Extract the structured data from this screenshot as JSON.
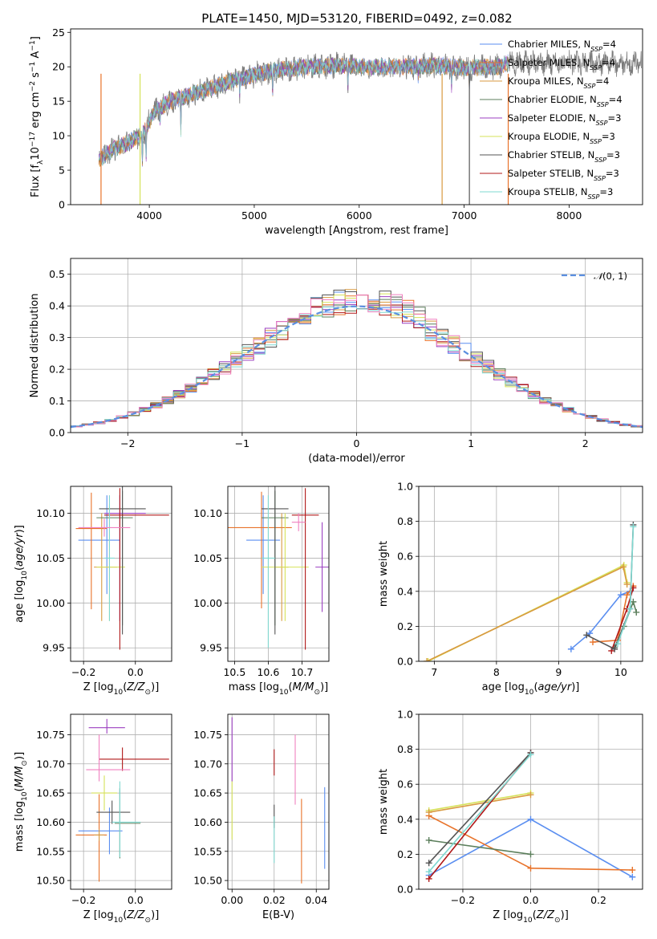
{
  "figure": {
    "title": "PLATE=1450, MJD=53120, FIBERID=0492, z=0.082"
  },
  "colors": {
    "Chabrier MILES": "#5a8ef0",
    "Salpeter MILES": "#e8732a",
    "Kroupa MILES": "#d89a40",
    "Chabrier ELODIE": "#5c7f5c",
    "Salpeter ELODIE": "#9b3fc0",
    "Kroupa ELODIE": "#d6e25a",
    "Chabrier STELIB": "#555555",
    "Salpeter STELIB": "#b01818",
    "Kroupa STELIB": "#7fd8d0",
    "extra_pink": "#f080c0",
    "grid": "#b0b0b0"
  },
  "chart_data": [
    {
      "id": "spectrum",
      "type": "line",
      "xlabel": "wavelength [Angstrom, rest frame]",
      "ylabel": "Flux [fλ10⁻¹⁷ erg cm⁻² s⁻¹ A⁻¹]",
      "xlim": [
        3250,
        8700
      ],
      "ylim": [
        0,
        25.5
      ],
      "xticks": [
        4000,
        5000,
        6000,
        7000,
        8000
      ],
      "yticks": [
        0,
        5,
        10,
        15,
        20,
        25
      ],
      "grid": false,
      "legend_position": "right",
      "legend": [
        "Chabrier MILES, N_SSP=4",
        "Salpeter MILES, N_SSP=4",
        "Kroupa MILES, N_SSP=4",
        "Chabrier ELODIE, N_SSP=4",
        "Salpeter ELODIE, N_SSP=3",
        "Kroupa ELODIE, N_SSP=3",
        "Chabrier STELIB, N_SSP=3",
        "Salpeter STELIB, N_SSP=3",
        "Kroupa STELIB, N_SSP=3"
      ],
      "continuum": [
        [
          3520,
          6.5
        ],
        [
          3650,
          8.0
        ],
        [
          3800,
          9.0
        ],
        [
          3950,
          10.5
        ],
        [
          4050,
          13.5
        ],
        [
          4200,
          15.0
        ],
        [
          4400,
          16.0
        ],
        [
          4600,
          17.0
        ],
        [
          4800,
          18.0
        ],
        [
          5000,
          18.8
        ],
        [
          5200,
          19.5
        ],
        [
          5500,
          20.0
        ],
        [
          5800,
          20.2
        ],
        [
          6100,
          20.0
        ],
        [
          6400,
          20.0
        ],
        [
          6700,
          20.2
        ],
        [
          7000,
          19.8
        ],
        [
          7300,
          20.0
        ],
        [
          7420,
          20.5
        ]
      ],
      "features": [
        [
          3934,
          4.0
        ],
        [
          3969,
          4.5
        ],
        [
          4102,
          2.0
        ],
        [
          4300,
          5.0
        ],
        [
          4861,
          2.0
        ],
        [
          5175,
          3.5
        ],
        [
          5893,
          3.0
        ],
        [
          6563,
          2.0
        ],
        [
          6880,
          2.5
        ],
        [
          7050,
          3.0
        ]
      ],
      "drops": [
        [
          3540,
          "Salpeter MILES"
        ],
        [
          3912,
          "Kroupa ELODIE"
        ],
        [
          6790,
          "Kroupa MILES"
        ],
        [
          7050,
          "Chabrier STELIB"
        ],
        [
          7420,
          "Salpeter MILES"
        ]
      ]
    },
    {
      "id": "residuals",
      "type": "line",
      "xlabel": "(data-model)/error",
      "ylabel": "Normed distribution",
      "xlim": [
        -2.5,
        2.5
      ],
      "ylim": [
        0,
        0.55
      ],
      "xticks": [
        -2,
        -1,
        0,
        1,
        2
      ],
      "yticks": [
        0.0,
        0.1,
        0.2,
        0.3,
        0.4,
        0.5
      ],
      "grid": true,
      "legend_position": "top-right",
      "legend": [
        "N(0, 1)"
      ]
    },
    {
      "id": "z_age",
      "type": "scatter",
      "xlabel": "Z [log10(Z/Z⊙)]",
      "ylabel": "age  [log10(age/yr)]",
      "xlim": [
        -0.25,
        0.14
      ],
      "ylim": [
        9.935,
        10.13
      ],
      "xticks": [
        -0.2,
        0.0
      ],
      "yticks": [
        9.95,
        10.0,
        10.05,
        10.1
      ],
      "grid": true,
      "points": [
        {
          "series": "Chabrier MILES",
          "x": -0.11,
          "y": 10.07,
          "xerr": [
            0.11,
            0.05
          ],
          "yerr": [
            0.06,
            0.05
          ]
        },
        {
          "series": "Salpeter MILES",
          "x": -0.17,
          "y": 10.083,
          "xerr": [
            0.06,
            0.06
          ],
          "yerr": [
            0.09,
            0.04
          ]
        },
        {
          "series": "Kroupa MILES",
          "x": -0.13,
          "y": 10.04,
          "xerr": [
            0.03,
            0.06
          ],
          "yerr": [
            0.06,
            0.06
          ]
        },
        {
          "series": "Chabrier ELODIE",
          "x": -0.05,
          "y": 10.095,
          "xerr": [
            0.1,
            0.04
          ],
          "yerr": [
            0.12,
            0.03
          ]
        },
        {
          "series": "Salpeter ELODIE",
          "x": -0.06,
          "y": 10.1,
          "xerr": [
            0.06,
            0.1
          ],
          "yerr": [
            0.12,
            0.02
          ]
        },
        {
          "series": "Kroupa ELODIE",
          "x": -0.1,
          "y": 10.04,
          "xerr": [
            0.05,
            0.06
          ],
          "yerr": [
            0.06,
            0.07
          ]
        },
        {
          "series": "Chabrier STELIB",
          "x": -0.05,
          "y": 10.105,
          "xerr": [
            0.09,
            0.09
          ],
          "yerr": [
            0.14,
            0.03
          ]
        },
        {
          "series": "Salpeter STELIB",
          "x": -0.06,
          "y": 10.098,
          "xerr": [
            0.06,
            0.19
          ],
          "yerr": [
            0.15,
            0.03
          ]
        },
        {
          "series": "Kroupa STELIB",
          "x": -0.1,
          "y": 10.05,
          "xerr": [
            0.02,
            0.02
          ],
          "yerr": [
            0.07,
            0.07
          ]
        },
        {
          "series": "extra_pink",
          "x": -0.12,
          "y": 10.084,
          "xerr": [
            0.1,
            0.1
          ],
          "yerr": [
            0.01,
            0.01
          ]
        }
      ]
    },
    {
      "id": "mass_age",
      "type": "scatter",
      "xlabel": "mass [log10(M/M⊙)]",
      "ylabel": "",
      "xlim": [
        10.48,
        10.78
      ],
      "ylim": [
        9.935,
        10.13
      ],
      "xticks": [
        10.5,
        10.6,
        10.7
      ],
      "yticks": [
        9.95,
        10.0,
        10.05,
        10.1
      ],
      "grid": true,
      "points": [
        {
          "series": "Chabrier MILES",
          "x": 10.585,
          "y": 10.07,
          "xerr": [
            0.05,
            0.05
          ],
          "yerr": [
            0.06,
            0.05
          ]
        },
        {
          "series": "Salpeter MILES",
          "x": 10.58,
          "y": 10.084,
          "xerr": [
            0.1,
            0.09
          ],
          "yerr": [
            0.09,
            0.04
          ]
        },
        {
          "series": "Kroupa MILES",
          "x": 10.64,
          "y": 10.04,
          "xerr": [
            0.02,
            0.02
          ],
          "yerr": [
            0.06,
            0.06
          ]
        },
        {
          "series": "Chabrier ELODIE",
          "x": 10.62,
          "y": 10.095,
          "xerr": [
            0.04,
            0.04
          ],
          "yerr": [
            0.12,
            0.03
          ]
        },
        {
          "series": "Salpeter ELODIE",
          "x": 10.76,
          "y": 10.04,
          "xerr": [
            0.02,
            0.02
          ],
          "yerr": [
            0.05,
            0.05
          ]
        },
        {
          "series": "Kroupa ELODIE",
          "x": 10.65,
          "y": 10.04,
          "xerr": [
            0.07,
            0.07
          ],
          "yerr": [
            0.06,
            0.06
          ]
        },
        {
          "series": "Chabrier STELIB",
          "x": 10.62,
          "y": 10.105,
          "xerr": [
            0.04,
            0.04
          ],
          "yerr": [
            0.14,
            0.03
          ]
        },
        {
          "series": "Salpeter STELIB",
          "x": 10.71,
          "y": 10.098,
          "xerr": [
            0.04,
            0.04
          ],
          "yerr": [
            0.15,
            0.03
          ]
        },
        {
          "series": "Kroupa STELIB",
          "x": 10.6,
          "y": 10.05,
          "xerr": [
            0.02,
            0.02
          ],
          "yerr": [
            0.1,
            0.07
          ]
        },
        {
          "series": "extra_pink",
          "x": 10.69,
          "y": 10.09,
          "xerr": [
            0.02,
            0.02
          ],
          "yerr": [
            0.01,
            0.01
          ]
        }
      ]
    },
    {
      "id": "age_weight",
      "type": "line",
      "xlabel": "age  [log10(age/yr)]",
      "ylabel": "mass weight",
      "xlim": [
        6.75,
        10.35
      ],
      "ylim": [
        0,
        1.0
      ],
      "xticks": [
        7,
        8,
        9,
        10
      ],
      "yticks": [
        0.0,
        0.2,
        0.4,
        0.6,
        0.8,
        1.0
      ],
      "grid": true,
      "series": [
        {
          "name": "Chabrier MILES",
          "x": [
            9.2,
            9.5,
            10.0,
            10.15
          ],
          "y": [
            0.07,
            0.16,
            0.38,
            0.4
          ]
        },
        {
          "name": "Salpeter MILES",
          "x": [
            9.55,
            9.95,
            10.1,
            10.2
          ],
          "y": [
            0.11,
            0.12,
            0.38,
            0.43
          ]
        },
        {
          "name": "Kroupa ELODIE",
          "x": [
            6.9,
            10.05,
            10.1
          ],
          "y": [
            0.0,
            0.55,
            0.45
          ]
        },
        {
          "name": "Kroupa MILES",
          "x": [
            6.88,
            10.04,
            10.1
          ],
          "y": [
            0.0,
            0.54,
            0.44
          ]
        },
        {
          "name": "Chabrier ELODIE",
          "x": [
            9.9,
            10.05,
            10.2,
            10.25
          ],
          "y": [
            0.08,
            0.2,
            0.34,
            0.28
          ]
        },
        {
          "name": "Salpeter STELIB",
          "x": [
            9.85,
            10.1,
            10.2
          ],
          "y": [
            0.06,
            0.3,
            0.42
          ]
        },
        {
          "name": "Chabrier STELIB",
          "x": [
            9.45,
            9.9,
            10.15,
            10.2
          ],
          "y": [
            0.15,
            0.07,
            0.3,
            0.78
          ]
        },
        {
          "name": "Kroupa STELIB",
          "x": [
            9.95,
            10.15,
            10.2
          ],
          "y": [
            0.1,
            0.3,
            0.77
          ]
        }
      ]
    },
    {
      "id": "z_mass",
      "type": "scatter",
      "xlabel": "Z [log10(Z/Z⊙)]",
      "ylabel": "mass [log10(M/M⊙)]",
      "xlim": [
        -0.25,
        0.14
      ],
      "ylim": [
        10.485,
        10.785
      ],
      "xticks": [
        -0.2,
        0.0
      ],
      "yticks": [
        10.5,
        10.55,
        10.6,
        10.65,
        10.7,
        10.75
      ],
      "grid": true,
      "points": [
        {
          "series": "Chabrier MILES",
          "x": -0.1,
          "y": 10.585,
          "xerr": [
            0.12,
            0.05
          ],
          "yerr": [
            0.04,
            0.04
          ]
        },
        {
          "series": "Salpeter MILES",
          "x": -0.14,
          "y": 10.578,
          "xerr": [
            0.09,
            0.03
          ],
          "yerr": [
            0.08,
            0.07
          ]
        },
        {
          "series": "Kroupa MILES",
          "x": -0.14,
          "y": 10.578,
          "xerr": [
            0.02,
            0.02
          ],
          "yerr": [
            0.01,
            0.01
          ]
        },
        {
          "series": "Chabrier ELODIE",
          "x": -0.06,
          "y": 10.598,
          "xerr": [
            0.02,
            0.08
          ],
          "yerr": [
            0.06,
            0.06
          ]
        },
        {
          "series": "Salpeter ELODIE",
          "x": -0.11,
          "y": 10.762,
          "xerr": [
            0.07,
            0.07
          ],
          "yerr": [
            0.01,
            0.015
          ]
        },
        {
          "series": "Kroupa ELODIE",
          "x": -0.12,
          "y": 10.65,
          "xerr": [
            0.05,
            0.05
          ],
          "yerr": [
            0.03,
            0.03
          ]
        },
        {
          "series": "Chabrier STELIB",
          "x": -0.09,
          "y": 10.617,
          "xerr": [
            0.06,
            0.07
          ],
          "yerr": [
            0.02,
            0.02
          ]
        },
        {
          "series": "Salpeter STELIB",
          "x": -0.05,
          "y": 10.708,
          "xerr": [
            0.09,
            0.18
          ],
          "yerr": [
            0.02,
            0.02
          ]
        },
        {
          "series": "Kroupa STELIB",
          "x": -0.06,
          "y": 10.6,
          "xerr": [
            0.03,
            0.08
          ],
          "yerr": [
            0.06,
            0.07
          ]
        },
        {
          "series": "extra_pink",
          "x": -0.14,
          "y": 10.69,
          "xerr": [
            0.05,
            0.12
          ],
          "yerr": [
            0.02,
            0.06
          ]
        }
      ]
    },
    {
      "id": "ebv_mass",
      "type": "scatter",
      "xlabel": "E(B-V)",
      "ylabel": "",
      "xlim": [
        -0.002,
        0.046
      ],
      "ylim": [
        10.485,
        10.785
      ],
      "xticks": [
        0.0,
        0.02,
        0.04
      ],
      "yticks": [
        10.5,
        10.55,
        10.6,
        10.65,
        10.7,
        10.75
      ],
      "grid": true,
      "points": [
        {
          "series": "Salpeter ELODIE",
          "x": 0.0,
          "y": 10.73,
          "yerr": [
            0.06,
            0.05
          ]
        },
        {
          "series": "Kroupa ELODIE",
          "x": 0.0,
          "y": 10.63,
          "yerr": [
            0.06,
            0.04
          ]
        },
        {
          "series": "Salpeter STELIB",
          "x": 0.02,
          "y": 10.7,
          "yerr": [
            0.02,
            0.025
          ]
        },
        {
          "series": "Chabrier STELIB",
          "x": 0.02,
          "y": 10.61,
          "yerr": [
            0.02,
            0.02
          ]
        },
        {
          "series": "Kroupa STELIB",
          "x": 0.02,
          "y": 10.57,
          "yerr": [
            0.04,
            0.04
          ]
        },
        {
          "series": "extra_pink",
          "x": 0.03,
          "y": 10.7,
          "yerr": [
            0.07,
            0.05
          ]
        },
        {
          "series": "Salpeter MILES",
          "x": 0.033,
          "y": 10.54,
          "yerr": [
            0.045,
            0.1
          ]
        },
        {
          "series": "Chabrier MILES",
          "x": 0.044,
          "y": 10.59,
          "yerr": [
            0.07,
            0.07
          ]
        }
      ]
    },
    {
      "id": "z_weight",
      "type": "line",
      "xlabel": "Z [log10(Z/Z⊙)]",
      "ylabel": "mass weight",
      "xlim": [
        -0.33,
        0.33
      ],
      "ylim": [
        0,
        1.0
      ],
      "xticks": [
        -0.2,
        0.0,
        0.2
      ],
      "yticks": [
        0.0,
        0.2,
        0.4,
        0.6,
        0.8,
        1.0
      ],
      "grid": true,
      "series": [
        {
          "name": "Chabrier MILES",
          "x": [
            -0.3,
            0.0,
            0.3
          ],
          "y": [
            0.08,
            0.4,
            0.07
          ]
        },
        {
          "name": "Salpeter MILES",
          "x": [
            -0.3,
            0.0,
            0.3
          ],
          "y": [
            0.42,
            0.12,
            0.11
          ]
        },
        {
          "name": "Kroupa ELODIE",
          "x": [
            -0.3,
            0.0
          ],
          "y": [
            0.45,
            0.55
          ]
        },
        {
          "name": "Kroupa MILES",
          "x": [
            -0.3,
            0.0
          ],
          "y": [
            0.44,
            0.54
          ]
        },
        {
          "name": "Chabrier ELODIE",
          "x": [
            -0.3,
            0.0
          ],
          "y": [
            0.28,
            0.2
          ]
        },
        {
          "name": "Salpeter STELIB",
          "x": [
            -0.3,
            0.0
          ],
          "y": [
            0.06,
            0.78
          ]
        },
        {
          "name": "Chabrier STELIB",
          "x": [
            -0.3,
            0.0
          ],
          "y": [
            0.15,
            0.78
          ]
        },
        {
          "name": "Kroupa STELIB",
          "x": [
            -0.3,
            0.0
          ],
          "y": [
            0.1,
            0.77
          ]
        }
      ]
    }
  ]
}
